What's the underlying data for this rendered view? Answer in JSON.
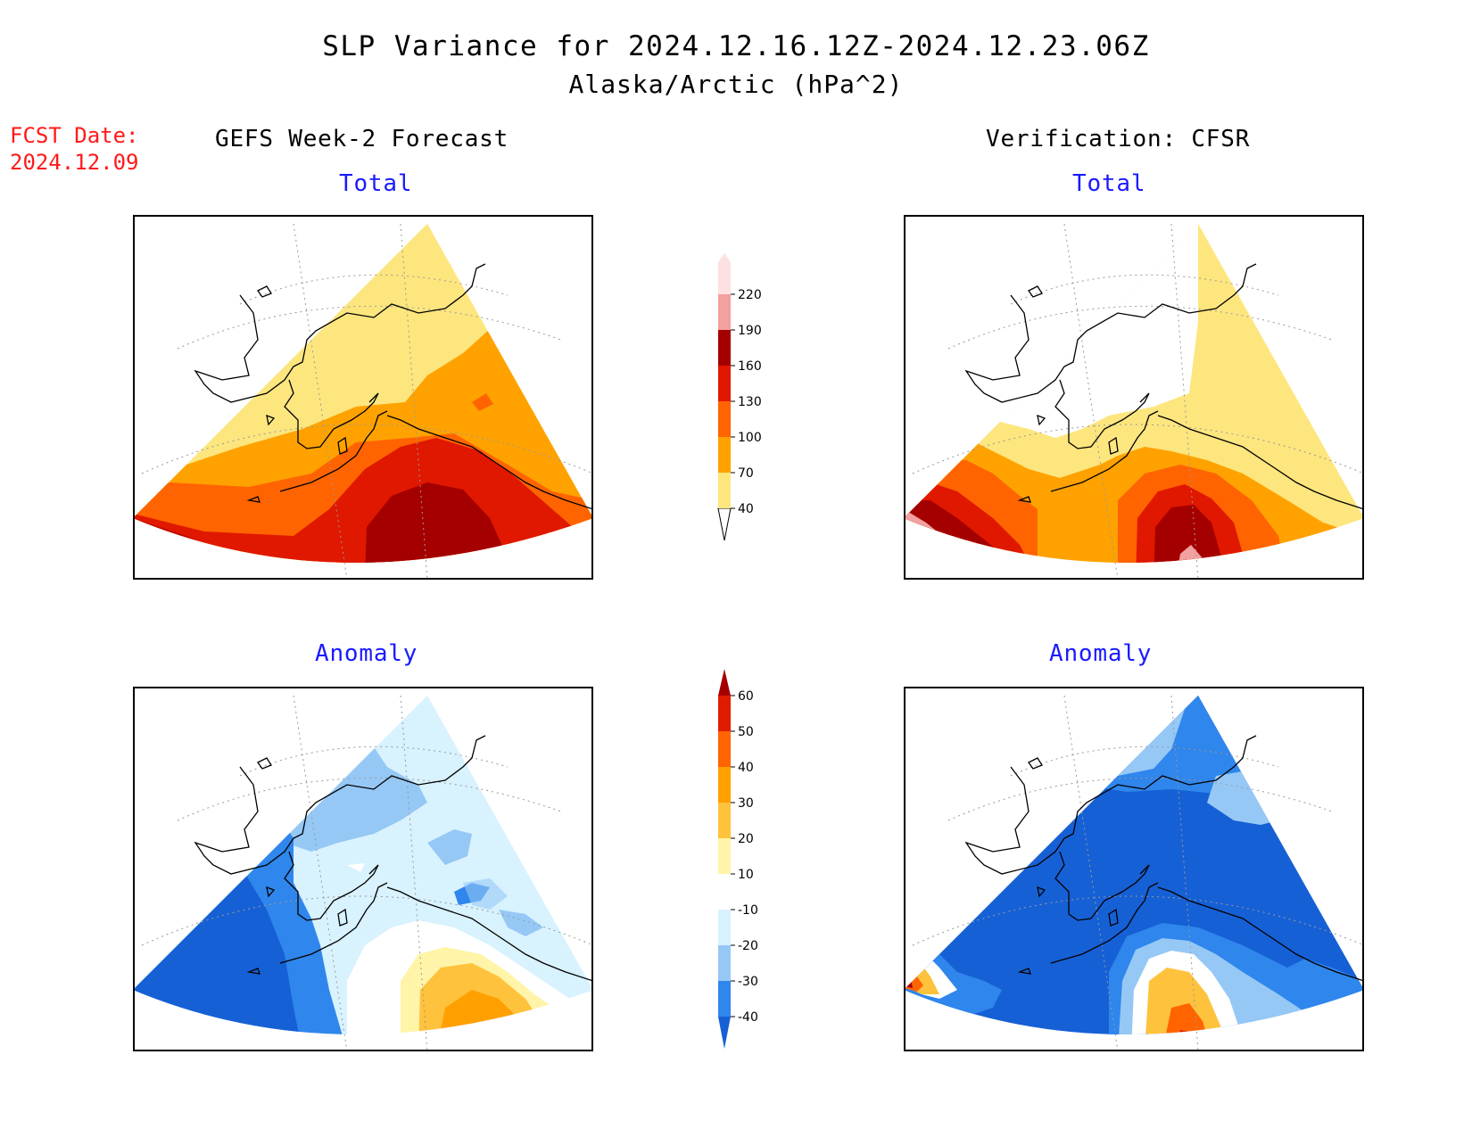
{
  "title": "SLP Variance for 2024.12.16.12Z-2024.12.23.06Z",
  "subtitle": "Alaska/Arctic (hPa^2)",
  "forecast_date_label": "FCST Date:",
  "forecast_date": "2024.12.09",
  "left_header": "GEFS Week-2 Forecast",
  "right_header": "Verification: CFSR",
  "panels": {
    "forecast_total": "Total",
    "verification_total": "Total",
    "forecast_anomaly": "Anomaly",
    "verification_anomaly": "Anomaly"
  },
  "total_scale": {
    "ticks": [
      "40",
      "70",
      "100",
      "130",
      "160",
      "190",
      "220"
    ],
    "colors": [
      "#fde67e",
      "#ffa200",
      "#ff6400",
      "#e01800",
      "#a50000",
      "#f2a0a0",
      "#fde0e0"
    ]
  },
  "anomaly_scale": {
    "ticks": [
      "-40",
      "-30",
      "-20",
      "-10",
      "10",
      "20",
      "30",
      "40",
      "50",
      "60"
    ],
    "colors": [
      "#1660d6",
      "#2f86ec",
      "#96c8f6",
      "#d8f2fe",
      "#ffffff",
      "#fff4a8",
      "#ffc23c",
      "#ffa000",
      "#ff6400",
      "#e01c00",
      "#a50000"
    ]
  }
}
